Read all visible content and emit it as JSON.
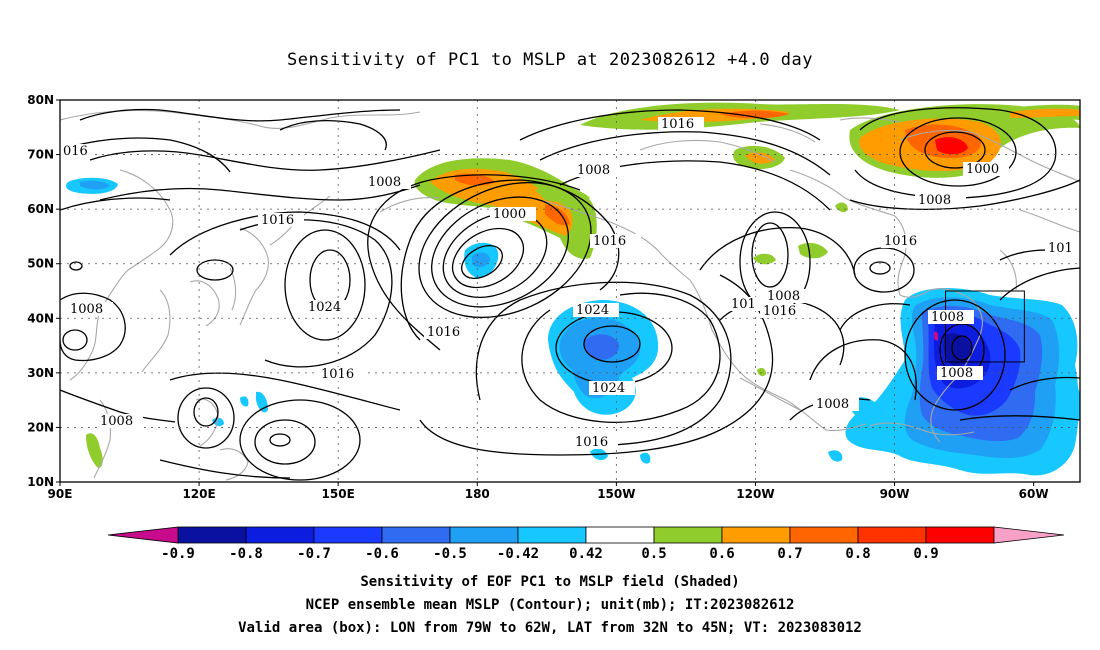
{
  "title": "Sensitivity of PC1 to MSLP at 2023082612 +4.0 day",
  "map": {
    "lon_labels": [
      "90E",
      "120E",
      "150E",
      "180",
      "150W",
      "120W",
      "90W",
      "60W"
    ],
    "lat_labels": [
      "80N",
      "70N",
      "60N",
      "50N",
      "40N",
      "30N",
      "20N",
      "10N"
    ],
    "lon_range": [
      90,
      310
    ],
    "lat_range": [
      10,
      80
    ],
    "grid": true,
    "valid_box": {
      "lon_w": -79,
      "lon_e": -62,
      "lat_s": 32,
      "lat_n": 45
    },
    "contour_labels": [
      "016",
      "1016",
      "1008",
      "1008",
      "1016",
      "1024",
      "1008",
      "1016",
      "1008",
      "1008",
      "1000",
      "1016",
      "1016",
      "1024",
      "1024",
      "1016",
      "1008",
      "1016",
      "101",
      "1008",
      "1016",
      "1000",
      "1008",
      "1016",
      "101",
      "1008",
      "1008",
      "1008"
    ]
  },
  "colorbar": {
    "ticks": [
      "-0.9",
      "-0.8",
      "-0.7",
      "-0.6",
      "-0.5",
      "-0.42",
      "0.42",
      "0.5",
      "0.6",
      "0.7",
      "0.8",
      "0.9"
    ],
    "colors": [
      "#0a10a0",
      "#0c1de0",
      "#1a3aff",
      "#2f6cf2",
      "#1fa0f5",
      "#16c8ff",
      "#ffffff",
      "#8fcc2c",
      "#ff9c00",
      "#ff6600",
      "#ff3300",
      "#ff0000"
    ],
    "low_end_color": "#c80a8c",
    "high_end_color": "#f7a0c8"
  },
  "footer": {
    "line1": "Sensitivity of EOF PC1 to MSLP field (Shaded)",
    "line2": "NCEP ensemble mean MSLP (Contour); unit(mb); IT:2023082612",
    "line3": "Valid area (box): LON from 79W to 62W, LAT from 32N to 45N; VT: 2023083012"
  }
}
